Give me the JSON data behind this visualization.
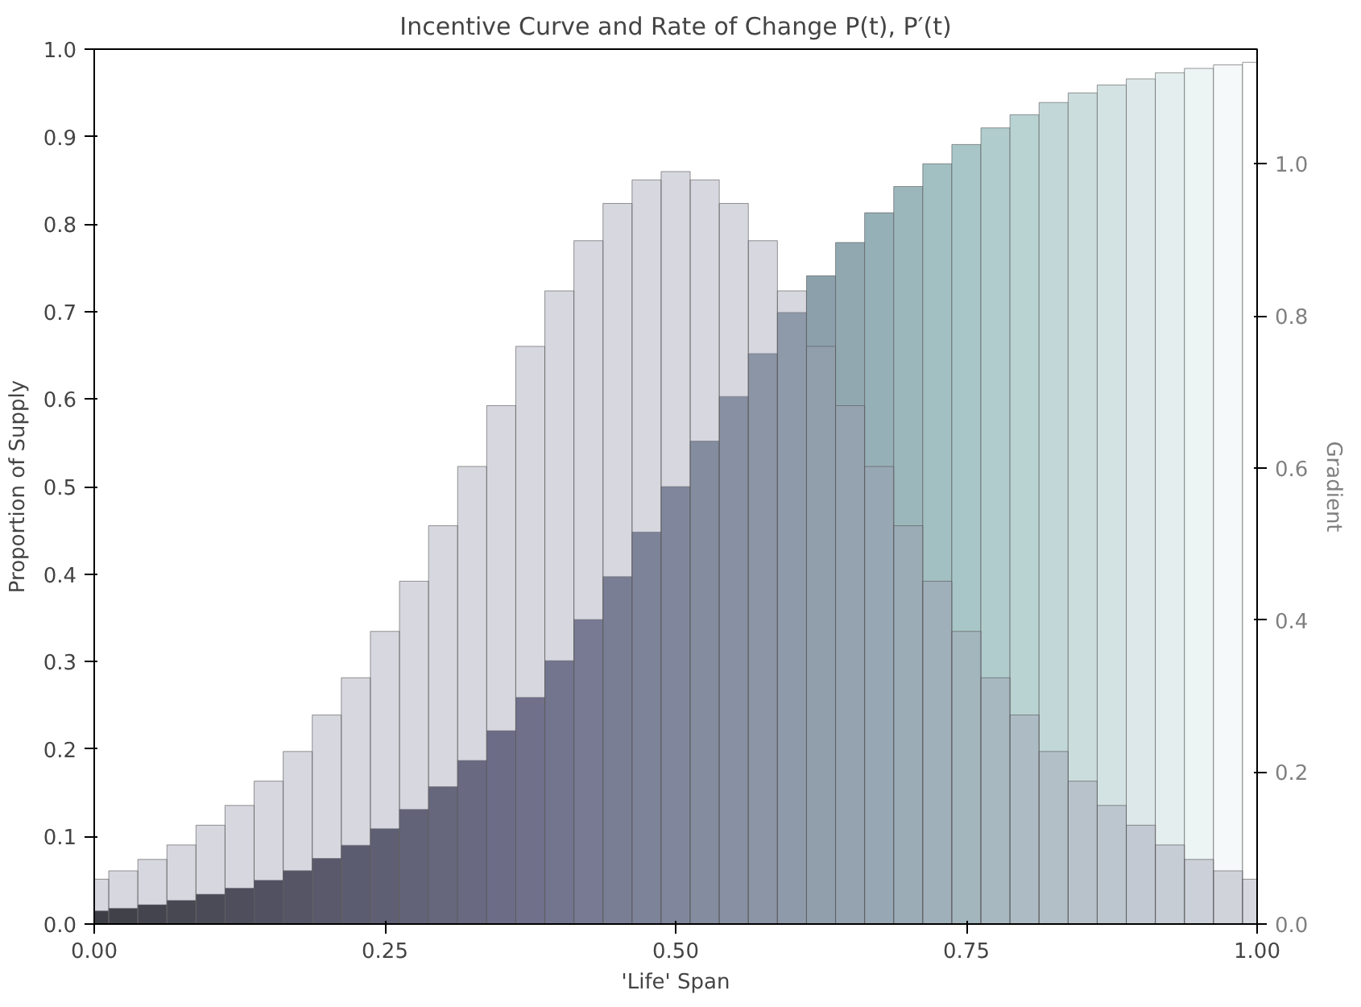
{
  "chart_data": {
    "type": "bar",
    "title": "Incentive Curve and Rate of Change P(t), P′(t)",
    "xlabel": "'Life' Span",
    "ylabel": "Proportion of Supply",
    "y2label": "Gradient",
    "x": [
      0,
      0.025,
      0.05,
      0.075,
      0.1,
      0.125,
      0.15,
      0.175,
      0.2,
      0.225,
      0.25,
      0.275,
      0.3,
      0.325,
      0.35,
      0.375,
      0.4,
      0.425,
      0.45,
      0.475,
      0.5,
      0.525,
      0.55,
      0.575,
      0.6,
      0.625,
      0.65,
      0.675,
      0.7,
      0.725,
      0.75,
      0.775,
      0.8,
      0.825,
      0.85,
      0.875,
      0.9,
      0.925,
      0.95,
      0.975,
      1
    ],
    "xlim": [
      0,
      1
    ],
    "ylim": [
      0,
      1
    ],
    "y2lim": [
      0,
      1.151
    ],
    "xticks": [
      {
        "value": 0,
        "label": "0.00"
      },
      {
        "value": 0.25,
        "label": "0.25"
      },
      {
        "value": 0.5,
        "label": "0.50"
      },
      {
        "value": 0.75,
        "label": "0.75"
      },
      {
        "value": 1,
        "label": "1.00"
      }
    ],
    "yticks": [
      {
        "value": 0,
        "label": "0.0"
      },
      0.1,
      0.2,
      0.3,
      0.4,
      0.5,
      0.6,
      0.7,
      0.8,
      0.9,
      {
        "value": 1,
        "label": "1.0"
      }
    ],
    "y2ticks": [
      {
        "value": 0,
        "label": "0.0"
      },
      0.2,
      0.4,
      0.6,
      0.8,
      {
        "value": 1,
        "label": "1.0"
      }
    ],
    "grid": false,
    "series": [
      {
        "colors": [
          "#000000",
          "#060608",
          "#0b0b10",
          "#111117",
          "#16161f",
          "#1c1c27",
          "#21212e",
          "#272736",
          "#2d2d3e",
          "#323246",
          "#38384e",
          "#3d3d55",
          "#43435d",
          "#484865",
          "#4e4e6d",
          "#545473",
          "#595c79",
          "#5f647f",
          "#646b84",
          "#6a738a",
          "#6f7a8f",
          "#758295",
          "#7b8a9b",
          "#8091a0",
          "#8699a6",
          "#8ba0ab",
          "#91a8b1",
          "#96b0b7",
          "#9cb7bc",
          "#a2bfc2",
          "#a8c6c7",
          "#b0cccd",
          "#b9d2d2",
          "#c2d7d8",
          "#cbdddd",
          "#d3e3e3",
          "#dce8e9",
          "#e5eeee",
          "#edf4f4",
          "#f6f9f9",
          "#ffffff"
        ],
        "values": [
          0.015,
          0.018,
          0.022,
          0.027,
          0.034,
          0.041,
          0.05,
          0.061,
          0.075,
          0.09,
          0.109,
          0.131,
          0.157,
          0.187,
          0.221,
          0.259,
          0.301,
          0.348,
          0.397,
          0.448,
          0.5,
          0.552,
          0.603,
          0.652,
          0.699,
          0.741,
          0.779,
          0.813,
          0.843,
          0.869,
          0.891,
          0.91,
          0.925,
          0.939,
          0.95,
          0.959,
          0.966,
          0.973,
          0.978,
          0.982,
          0.985
        ]
      },
      {
        "color": "#9a9aae",
        "axis": "y2",
        "values": [
          0.059,
          0.07,
          0.085,
          0.104,
          0.13,
          0.156,
          0.188,
          0.227,
          0.275,
          0.324,
          0.385,
          0.451,
          0.524,
          0.602,
          0.682,
          0.76,
          0.833,
          0.899,
          0.948,
          0.979,
          0.99,
          0.979,
          0.948,
          0.899,
          0.833,
          0.76,
          0.682,
          0.602,
          0.524,
          0.451,
          0.385,
          0.324,
          0.275,
          0.227,
          0.188,
          0.156,
          0.13,
          0.104,
          0.085,
          0.07,
          0.059
        ]
      }
    ]
  }
}
